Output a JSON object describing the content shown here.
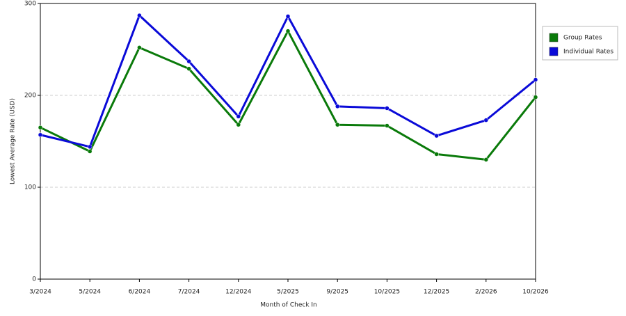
{
  "chart_data": {
    "type": "line",
    "x_label": "Month of Check In",
    "y_label": "Lowest Average Rate (USD)",
    "categories": [
      "3/2024",
      "5/2024",
      "6/2024",
      "7/2024",
      "12/2024",
      "5/2025",
      "9/2025",
      "10/2025",
      "12/2025",
      "2/2026",
      "10/2026"
    ],
    "series": [
      {
        "name": "Group Rates",
        "color": "#0a7a0a",
        "values": [
          165,
          139,
          252,
          229,
          168,
          270,
          168,
          167,
          136,
          130,
          198
        ]
      },
      {
        "name": "Individual Rates",
        "color": "#0a0ad8",
        "values": [
          157,
          144,
          287,
          237,
          177,
          286,
          188,
          186,
          156,
          173,
          217
        ]
      }
    ],
    "ylim": [
      0,
      300
    ],
    "yticks": [
      0,
      100,
      200,
      300
    ],
    "grid": true,
    "legend": "right"
  }
}
